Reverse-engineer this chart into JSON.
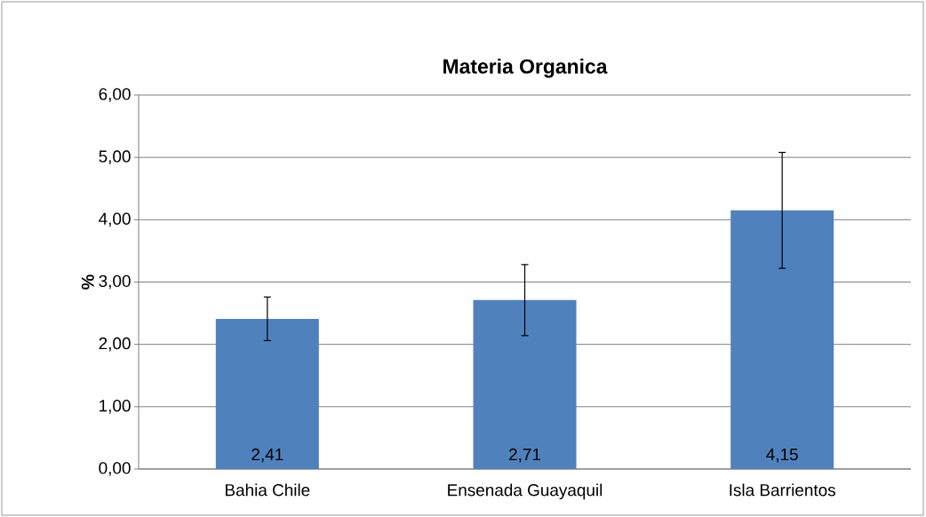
{
  "chart_data": {
    "type": "bar",
    "title": "Materia Organica",
    "ylabel": "%",
    "categories": [
      "Bahia Chile",
      "Ensenada Guayaquil",
      "Isla Barrientos"
    ],
    "values": [
      2.41,
      2.71,
      4.15
    ],
    "errors": [
      0.35,
      0.57,
      0.93
    ],
    "value_labels": [
      "2,41",
      "2,71",
      "4,15"
    ],
    "color": "#4f81bd",
    "ylim": [
      0,
      6
    ],
    "yticks": [
      {
        "value": 0,
        "label": "0,00"
      },
      {
        "value": 1,
        "label": "1,00"
      },
      {
        "value": 2,
        "label": "2,00"
      },
      {
        "value": 3,
        "label": "3,00"
      },
      {
        "value": 4,
        "label": "4,00"
      },
      {
        "value": 5,
        "label": "5,00"
      },
      {
        "value": 6,
        "label": "6,00"
      }
    ],
    "grid": "y"
  }
}
